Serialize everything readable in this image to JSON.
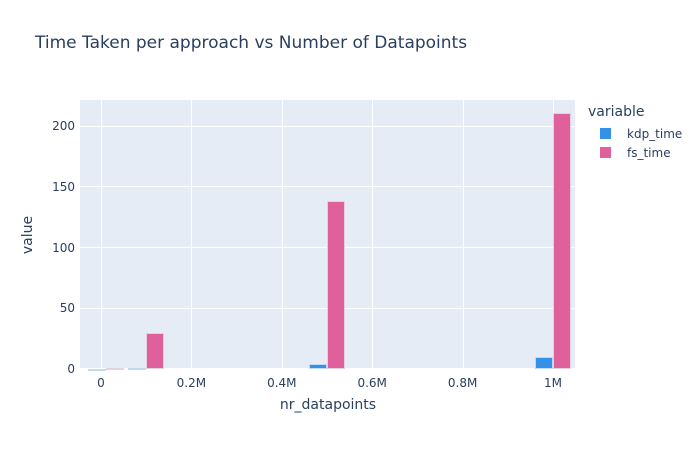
{
  "chart_data": {
    "type": "bar",
    "barmode": "group",
    "title": "Time Taken per approach vs Number of Datapoints",
    "xlabel": "nr_datapoints",
    "ylabel": "value",
    "x": [
      10000,
      100000,
      500000,
      1000000
    ],
    "series": [
      {
        "name": "kdp_time",
        "color": "#3391e8",
        "values": [
          0.1,
          0.5,
          4.5,
          9.5
        ]
      },
      {
        "name": "fs_time",
        "color": "#e0609c",
        "values": [
          1.0,
          30,
          138,
          210.5
        ]
      }
    ],
    "xlim": [
      -45000,
      1050000
    ],
    "ylim": [
      0,
      221.4
    ],
    "x_ticks": [
      {
        "value": 0,
        "label": "0"
      },
      {
        "value": 200000,
        "label": "0.2M"
      },
      {
        "value": 400000,
        "label": "0.4M"
      },
      {
        "value": 600000,
        "label": "0.6M"
      },
      {
        "value": 800000,
        "label": "0.8M"
      },
      {
        "value": 1000000,
        "label": "1M"
      }
    ],
    "y_ticks": [
      {
        "value": 0,
        "label": "0"
      },
      {
        "value": 50,
        "label": "50"
      },
      {
        "value": 100,
        "label": "100"
      },
      {
        "value": 150,
        "label": "150"
      },
      {
        "value": 200,
        "label": "200"
      }
    ],
    "legend": {
      "title": "variable",
      "position": "right"
    },
    "grid": true
  },
  "labels": {
    "title": "Time Taken per approach vs Number of Datapoints",
    "xlabel": "nr_datapoints",
    "ylabel": "value",
    "legend_title": "variable",
    "legend_items": [
      "kdp_time",
      "fs_time"
    ]
  }
}
